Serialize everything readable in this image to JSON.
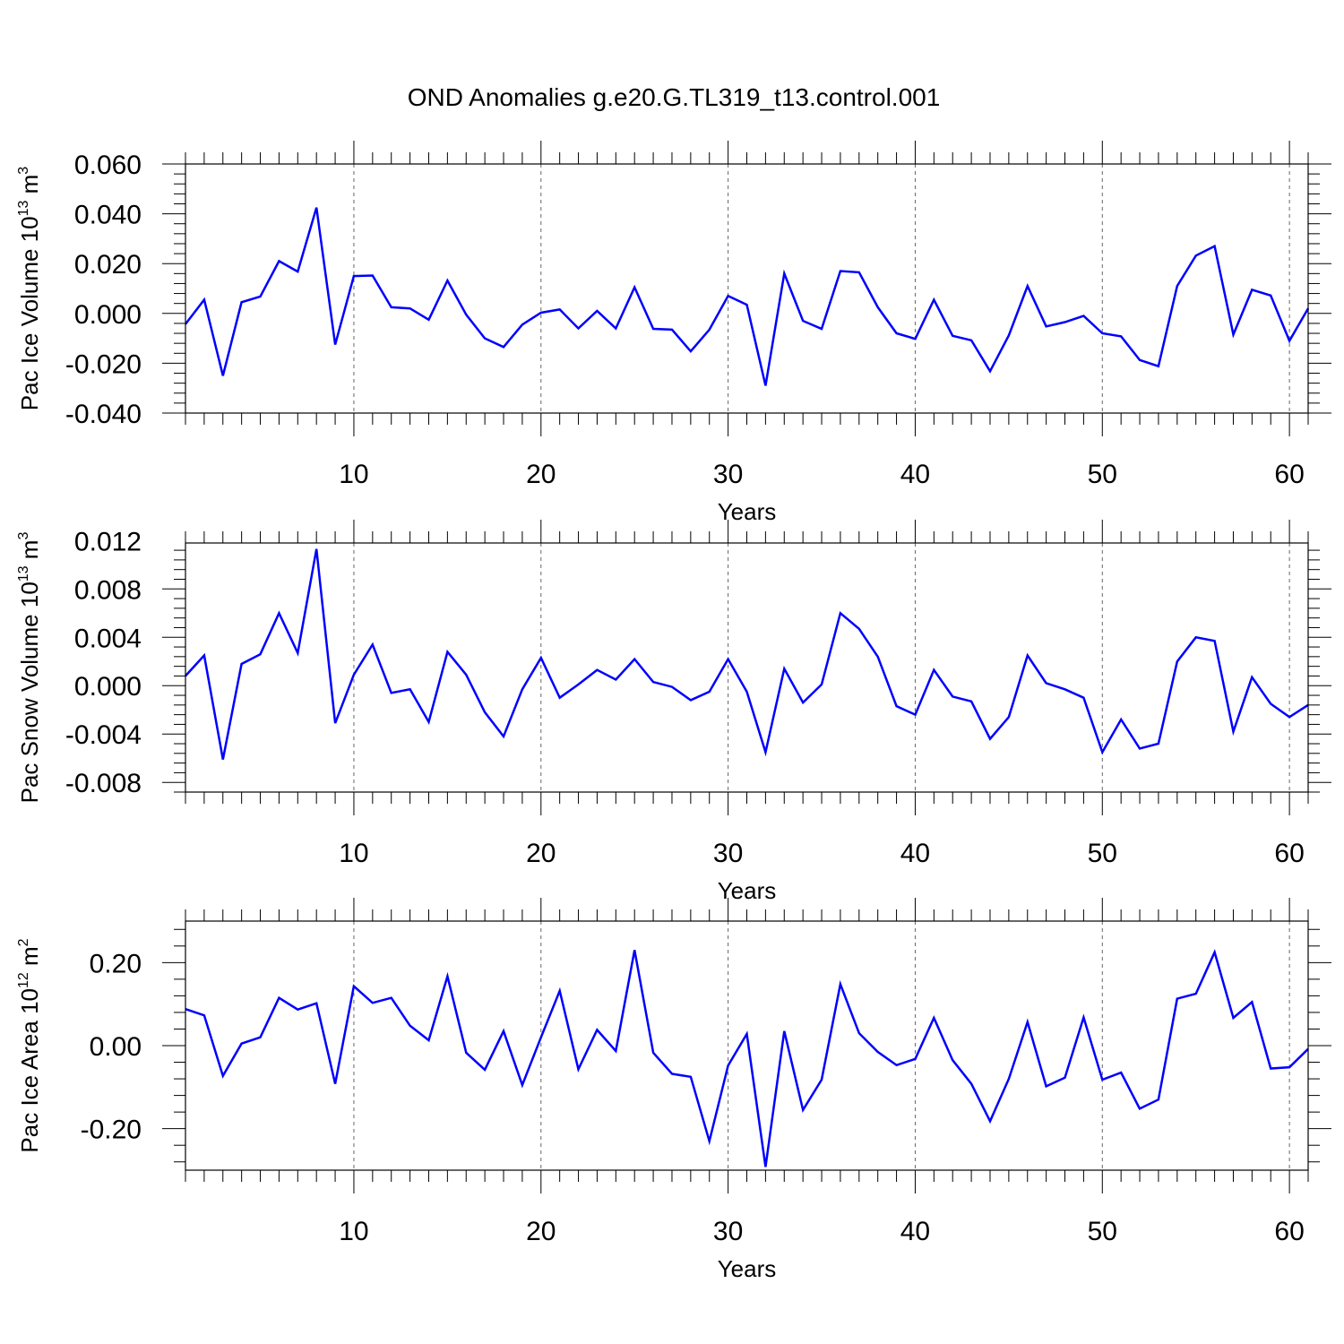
{
  "title": "OND Anomalies g.e20.G.TL319_t13.control.001",
  "line_color": "#0000ff",
  "chart_data": [
    {
      "type": "line",
      "xlabel": "Years",
      "ylabel": "Pac Ice Volume 10",
      "ylabel_exp": "13",
      "ylabel_unit": "m",
      "ylabel_unit_exp": "3",
      "xlim": [
        1,
        61
      ],
      "ylim": [
        -0.04,
        0.06
      ],
      "x_ticks": [
        10,
        20,
        30,
        40,
        50,
        60
      ],
      "y_ticks": [
        -0.04,
        -0.02,
        0.0,
        0.02,
        0.04,
        0.06
      ],
      "y_tick_labels": [
        "-0.040",
        "-0.020",
        "0.000",
        "0.020",
        "0.040",
        "0.060"
      ],
      "grid": "vertical dashed at major x ticks",
      "x": [
        1,
        2,
        3,
        4,
        5,
        6,
        7,
        8,
        9,
        10,
        11,
        12,
        13,
        14,
        15,
        16,
        17,
        18,
        19,
        20,
        21,
        22,
        23,
        24,
        25,
        26,
        27,
        28,
        29,
        30,
        31,
        32,
        33,
        34,
        35,
        36,
        37,
        38,
        39,
        40,
        41,
        42,
        43,
        44,
        45,
        46,
        47,
        48,
        49,
        50,
        51,
        52,
        53,
        54,
        55,
        56,
        57,
        58,
        59,
        60,
        61
      ],
      "y": [
        -0.0043,
        0.0055,
        -0.025,
        0.0045,
        0.0068,
        0.021,
        0.0168,
        0.0425,
        -0.0125,
        0.015,
        0.0152,
        0.0025,
        0.002,
        -0.0025,
        0.0132,
        -0.0005,
        -0.01,
        -0.0135,
        -0.0045,
        0.0003,
        0.0016,
        -0.006,
        0.001,
        -0.006,
        0.0105,
        -0.0062,
        -0.0065,
        -0.0152,
        -0.0065,
        0.007,
        0.0035,
        -0.029,
        0.016,
        -0.003,
        -0.0062,
        0.017,
        0.0165,
        0.0025,
        -0.008,
        -0.0102,
        0.0055,
        -0.009,
        -0.0108,
        -0.0232,
        -0.0088,
        0.011,
        -0.0052,
        -0.0035,
        -0.001,
        -0.008,
        -0.0092,
        -0.0187,
        -0.0212,
        0.011,
        0.0232,
        0.027,
        -0.0085,
        0.0095,
        0.0072,
        -0.011,
        0.002
      ]
    },
    {
      "type": "line",
      "xlabel": "Years",
      "ylabel": "Pac Snow Volume 10",
      "ylabel_exp": "13",
      "ylabel_unit": "m",
      "ylabel_unit_exp": "3",
      "xlim": [
        1,
        61
      ],
      "ylim": [
        -0.0088,
        0.0118
      ],
      "x_ticks": [
        10,
        20,
        30,
        40,
        50,
        60
      ],
      "y_ticks": [
        -0.008,
        -0.004,
        0.0,
        0.004,
        0.008,
        0.012
      ],
      "y_tick_labels": [
        "-0.008",
        "-0.004",
        "0.000",
        "0.004",
        "0.008",
        "0.012"
      ],
      "grid": "vertical dashed at major x ticks",
      "x": [
        1,
        2,
        3,
        4,
        5,
        6,
        7,
        8,
        9,
        10,
        11,
        12,
        13,
        14,
        15,
        16,
        17,
        18,
        19,
        20,
        21,
        22,
        23,
        24,
        25,
        26,
        27,
        28,
        29,
        30,
        31,
        32,
        33,
        34,
        35,
        36,
        37,
        38,
        39,
        40,
        41,
        42,
        43,
        44,
        45,
        46,
        47,
        48,
        49,
        50,
        51,
        52,
        53,
        54,
        55,
        56,
        57,
        58,
        59,
        60,
        61
      ],
      "y": [
        0.0008,
        0.0025,
        -0.0061,
        0.0018,
        0.0026,
        0.006,
        0.0027,
        0.0113,
        -0.0031,
        0.0009,
        0.0034,
        -0.0006,
        -0.0003,
        -0.003,
        0.0028,
        0.0009,
        -0.0022,
        -0.0042,
        -0.0003,
        0.0023,
        -0.001,
        0.0001,
        0.0013,
        0.0005,
        0.0022,
        0.0003,
        -0.0001,
        -0.0012,
        -0.0005,
        0.0022,
        -0.0005,
        -0.0055,
        0.0014,
        -0.0014,
        0.0001,
        0.006,
        0.0047,
        0.0024,
        -0.0017,
        -0.0024,
        0.0013,
        -0.0009,
        -0.0013,
        -0.0044,
        -0.0026,
        0.0025,
        0.0002,
        -0.0003,
        -0.001,
        -0.0055,
        -0.0028,
        -0.0052,
        -0.0048,
        0.002,
        0.004,
        0.0037,
        -0.0038,
        0.0007,
        -0.0015,
        -0.0026,
        -0.0016
      ]
    },
    {
      "type": "line",
      "xlabel": "Years",
      "ylabel": "Pac Ice Area 10",
      "ylabel_exp": "12",
      "ylabel_unit": "m",
      "ylabel_unit_exp": "2",
      "xlim": [
        1,
        61
      ],
      "ylim": [
        -0.3,
        0.3
      ],
      "x_ticks": [
        10,
        20,
        30,
        40,
        50,
        60
      ],
      "y_ticks": [
        -0.2,
        0.0,
        0.2
      ],
      "y_tick_labels": [
        "-0.20",
        "0.00",
        "0.20"
      ],
      "grid": "vertical dashed at major x ticks",
      "x": [
        1,
        2,
        3,
        4,
        5,
        6,
        7,
        8,
        9,
        10,
        11,
        12,
        13,
        14,
        15,
        16,
        17,
        18,
        19,
        20,
        21,
        22,
        23,
        24,
        25,
        26,
        27,
        28,
        29,
        30,
        31,
        32,
        33,
        34,
        35,
        36,
        37,
        38,
        39,
        40,
        41,
        42,
        43,
        44,
        45,
        46,
        47,
        48,
        49,
        50,
        51,
        52,
        53,
        54,
        55,
        56,
        57,
        58,
        59,
        60,
        61
      ],
      "y": [
        0.088,
        0.073,
        -0.073,
        0.005,
        0.02,
        0.115,
        0.087,
        0.102,
        -0.092,
        0.143,
        0.103,
        0.115,
        0.048,
        0.013,
        0.167,
        -0.017,
        -0.058,
        0.035,
        -0.095,
        0.02,
        0.132,
        -0.057,
        0.038,
        -0.013,
        0.23,
        -0.017,
        -0.068,
        -0.075,
        -0.23,
        -0.048,
        0.028,
        -0.292,
        0.035,
        -0.155,
        -0.082,
        0.148,
        0.03,
        -0.015,
        -0.047,
        -0.032,
        0.067,
        -0.035,
        -0.092,
        -0.182,
        -0.08,
        0.057,
        -0.098,
        -0.077,
        0.068,
        -0.082,
        -0.065,
        -0.152,
        -0.13,
        0.113,
        0.125,
        0.225,
        0.067,
        0.105,
        -0.055,
        -0.052,
        -0.008
      ]
    }
  ]
}
